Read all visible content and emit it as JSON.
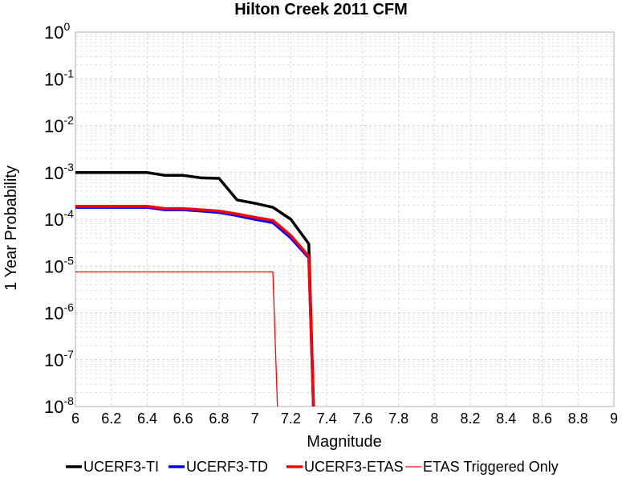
{
  "chart_data": {
    "type": "line",
    "title": "Hilton Creek 2011 CFM",
    "xlabel": "Magnitude",
    "ylabel": "1 Year Probability",
    "xlim": [
      6,
      9
    ],
    "ylim": [
      1e-08,
      1
    ],
    "yscale": "log",
    "grid": true,
    "legend_position": "bottom",
    "x_ticks": [
      "6",
      "6.2",
      "6.4",
      "6.6",
      "6.8",
      "7",
      "7.2",
      "7.4",
      "7.6",
      "7.8",
      "8",
      "8.2",
      "8.4",
      "8.6",
      "8.8",
      "9"
    ],
    "y_ticks": [
      {
        "base": "10",
        "exp": "0"
      },
      {
        "base": "10",
        "exp": "-1"
      },
      {
        "base": "10",
        "exp": "-2"
      },
      {
        "base": "10",
        "exp": "-3"
      },
      {
        "base": "10",
        "exp": "-4"
      },
      {
        "base": "10",
        "exp": "-5"
      },
      {
        "base": "10",
        "exp": "-6"
      },
      {
        "base": "10",
        "exp": "-7"
      },
      {
        "base": "10",
        "exp": "-8"
      }
    ],
    "series": [
      {
        "name": "UCERF3-TI",
        "color": "#000000",
        "line_width": "thick",
        "x": [
          6.0,
          6.1,
          6.2,
          6.3,
          6.4,
          6.5,
          6.6,
          6.7,
          6.8,
          6.9,
          7.0,
          7.1,
          7.2,
          7.3,
          7.33
        ],
        "y": [
          0.001,
          0.001,
          0.001,
          0.001,
          0.001,
          0.00087,
          0.00087,
          0.00077,
          0.00075,
          0.00026,
          0.00022,
          0.00018,
          0.0001,
          3e-05,
          1e-09
        ]
      },
      {
        "name": "UCERF3-TD",
        "color": "#0000ff",
        "line_width": "thick",
        "x": [
          6.0,
          6.1,
          6.2,
          6.3,
          6.4,
          6.5,
          6.6,
          6.7,
          6.8,
          6.9,
          7.0,
          7.1,
          7.2,
          7.3,
          7.33
        ],
        "y": [
          0.00018,
          0.00018,
          0.00018,
          0.00018,
          0.00018,
          0.00016,
          0.00016,
          0.00015,
          0.00014,
          0.00012,
          0.0001,
          8.5e-05,
          4e-05,
          1.5e-05,
          1e-09
        ]
      },
      {
        "name": "UCERF3-ETAS",
        "color": "#ff0000",
        "line_width": "thick",
        "x": [
          6.0,
          6.1,
          6.2,
          6.3,
          6.4,
          6.5,
          6.6,
          6.7,
          6.8,
          6.9,
          7.0,
          7.1,
          7.2,
          7.3,
          7.33
        ],
        "y": [
          0.00019,
          0.00019,
          0.00019,
          0.00019,
          0.00019,
          0.00017,
          0.00017,
          0.00016,
          0.00015,
          0.00013,
          0.00011,
          9.5e-05,
          4.5e-05,
          1.6e-05,
          1e-09
        ]
      },
      {
        "name": "ETAS Triggered Only",
        "color": "#ff0000",
        "line_width": "thin",
        "x": [
          6.0,
          6.1,
          6.2,
          6.3,
          6.4,
          6.5,
          6.6,
          6.7,
          6.8,
          6.9,
          7.0,
          7.1,
          7.13
        ],
        "y": [
          7.5e-06,
          7.5e-06,
          7.5e-06,
          7.5e-06,
          7.5e-06,
          7.5e-06,
          7.5e-06,
          7.5e-06,
          7.5e-06,
          7.5e-06,
          7.5e-06,
          7.5e-06,
          1e-09
        ]
      }
    ]
  }
}
